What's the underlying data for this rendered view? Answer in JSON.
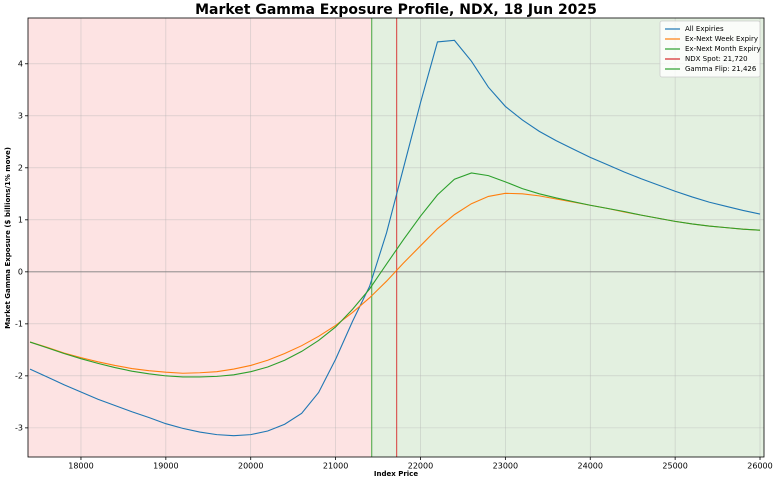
{
  "chart_data": {
    "type": "line",
    "title": "Market Gamma Exposure Profile, NDX, 18 Jun 2025",
    "x_label": "Index Price",
    "y_label": "Market Gamma Exposure ($ billions/1% move)",
    "x": [
      17400,
      17600,
      17800,
      18000,
      18200,
      18400,
      18600,
      18800,
      19000,
      19200,
      19400,
      19600,
      19800,
      20000,
      20200,
      20400,
      20600,
      20800,
      21000,
      21200,
      21400,
      21600,
      21800,
      22000,
      22200,
      22400,
      22600,
      22800,
      23000,
      23200,
      23400,
      23600,
      23800,
      24000,
      24200,
      24400,
      24600,
      24800,
      25000,
      25200,
      25400,
      25600,
      25800,
      26000
    ],
    "series": [
      {
        "name": "All Expiries",
        "color": "#1f77b4",
        "values": [
          -1.87,
          -2.02,
          -2.17,
          -2.31,
          -2.45,
          -2.57,
          -2.69,
          -2.8,
          -2.92,
          -3.01,
          -3.08,
          -3.13,
          -3.15,
          -3.13,
          -3.06,
          -2.93,
          -2.72,
          -2.32,
          -1.68,
          -0.95,
          -0.28,
          0.75,
          2.0,
          3.25,
          4.42,
          4.45,
          4.05,
          3.55,
          3.18,
          2.92,
          2.7,
          2.52,
          2.36,
          2.2,
          2.06,
          1.92,
          1.79,
          1.67,
          1.55,
          1.44,
          1.34,
          1.26,
          1.18,
          1.11
        ]
      },
      {
        "name": "Ex-Next Week Expiry",
        "color": "#ff7f0e",
        "values": [
          -1.35,
          -1.45,
          -1.56,
          -1.65,
          -1.73,
          -1.8,
          -1.86,
          -1.9,
          -1.93,
          -1.95,
          -1.94,
          -1.92,
          -1.87,
          -1.8,
          -1.7,
          -1.57,
          -1.42,
          -1.24,
          -1.03,
          -0.78,
          -0.5,
          -0.18,
          0.17,
          0.5,
          0.83,
          1.1,
          1.31,
          1.45,
          1.51,
          1.5,
          1.46,
          1.4,
          1.34,
          1.28,
          1.22,
          1.15,
          1.09,
          1.03,
          0.97,
          0.92,
          0.88,
          0.85,
          0.82,
          0.8
        ]
      },
      {
        "name": "Ex-Next Month Expiry",
        "color": "#2ca02c",
        "values": [
          -1.35,
          -1.46,
          -1.57,
          -1.67,
          -1.76,
          -1.84,
          -1.91,
          -1.96,
          -2.0,
          -2.02,
          -2.02,
          -2.01,
          -1.98,
          -1.92,
          -1.83,
          -1.7,
          -1.53,
          -1.32,
          -1.06,
          -0.72,
          -0.33,
          0.15,
          0.62,
          1.07,
          1.48,
          1.78,
          1.9,
          1.85,
          1.73,
          1.6,
          1.5,
          1.42,
          1.35,
          1.28,
          1.22,
          1.16,
          1.09,
          1.03,
          0.97,
          0.92,
          0.88,
          0.85,
          0.82,
          0.8
        ]
      }
    ],
    "vlines": [
      {
        "name": "NDX Spot: 21,720",
        "value": 21720,
        "color": "#d62728"
      },
      {
        "name": "Gamma Flip: 21,426",
        "value": 21426,
        "color": "#2ca02c"
      }
    ],
    "shade_colors": [
      "#fde3e3",
      "#e3f0e0"
    ],
    "xlim": [
      17376,
      26047
    ],
    "ylim": [
      -3.56,
      4.88
    ],
    "xticks": [
      18000,
      19000,
      20000,
      21000,
      22000,
      23000,
      24000,
      25000,
      26000
    ],
    "yticks": [
      -3,
      -2,
      -1,
      0,
      1,
      2,
      3,
      4
    ],
    "grid": true,
    "legend": "upper-right"
  }
}
